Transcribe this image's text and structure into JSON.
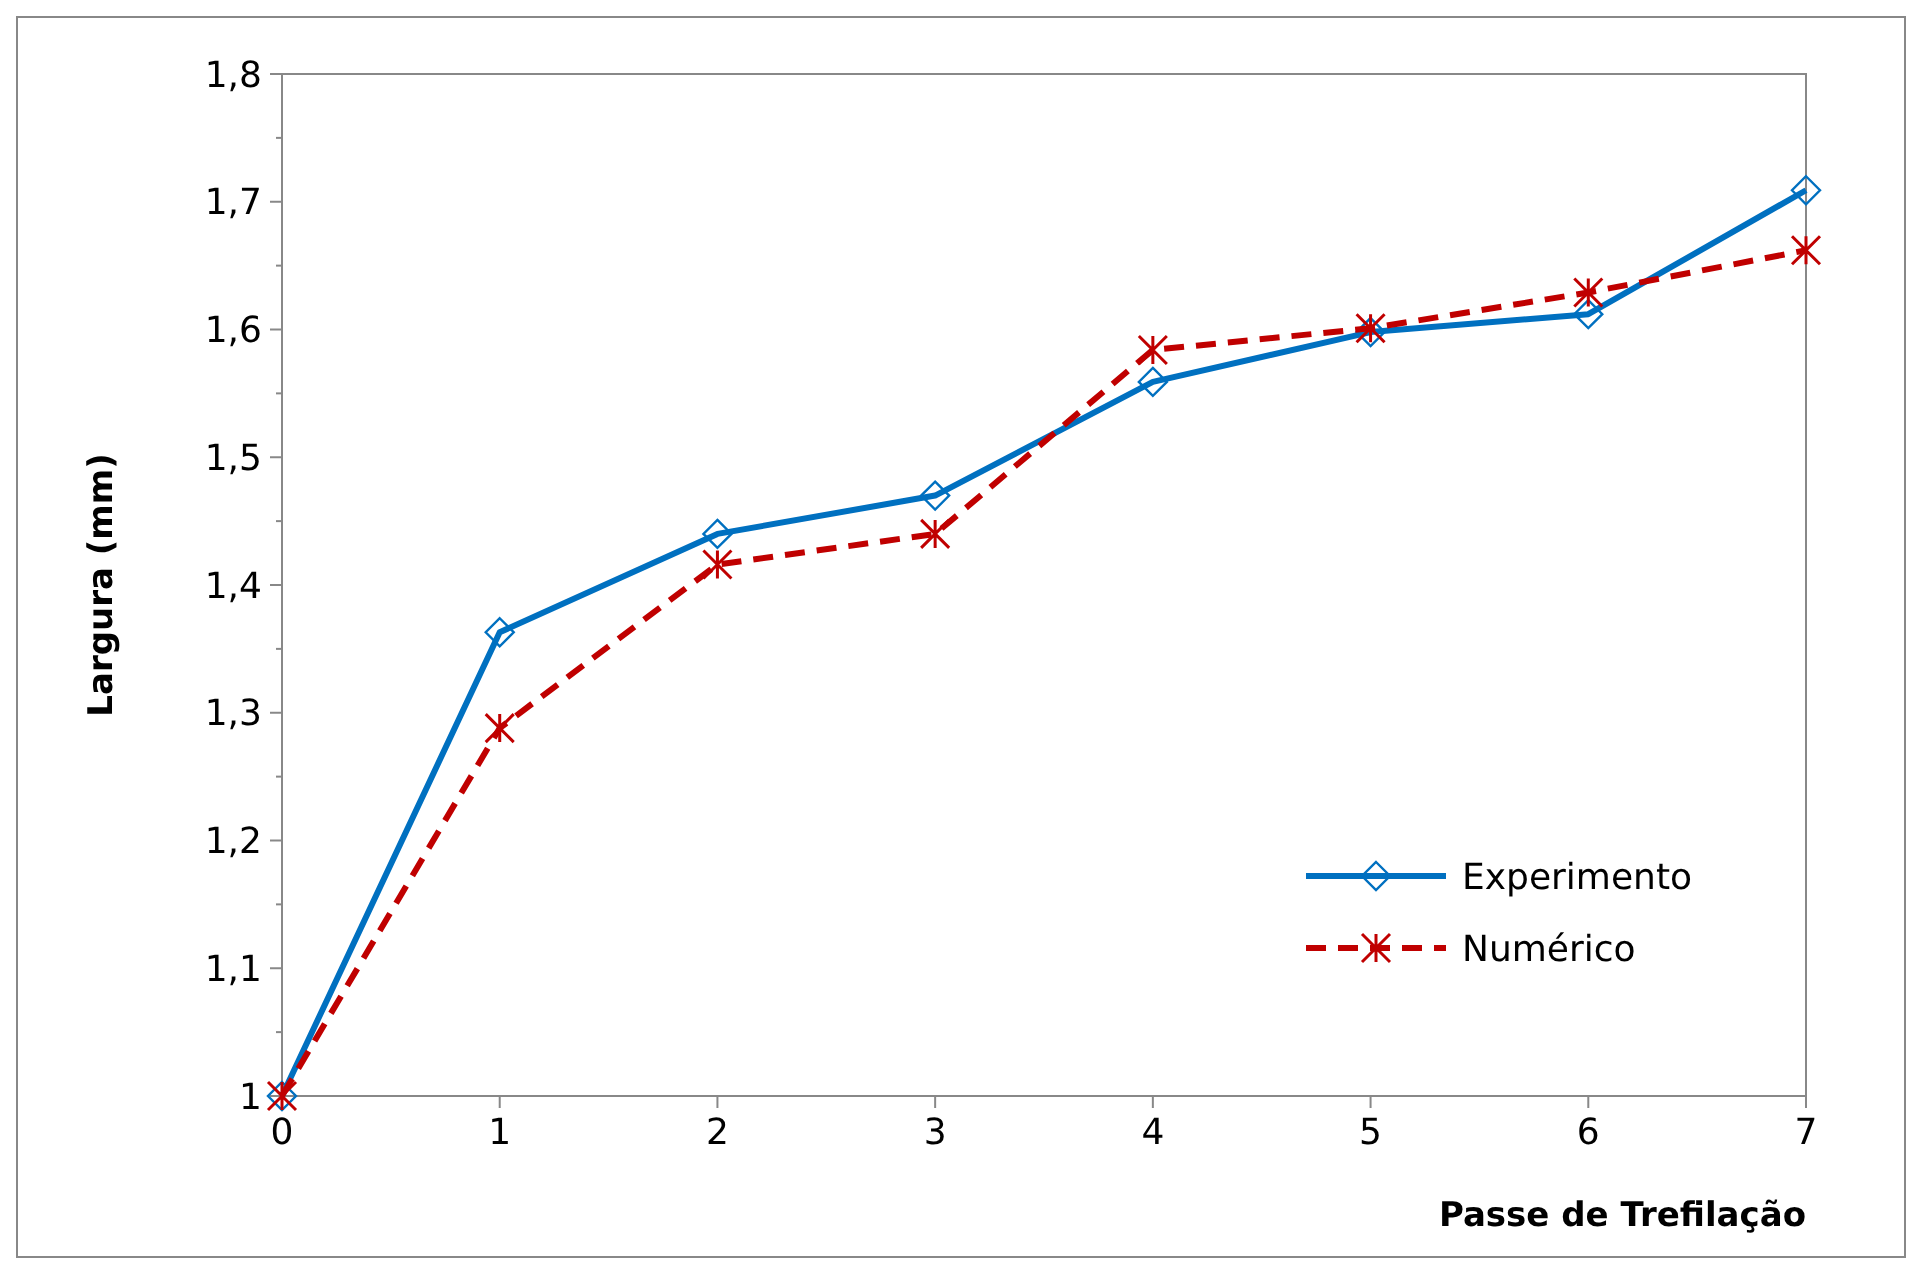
{
  "chart_data": {
    "type": "line",
    "xlabel": "Passe de Trefilação",
    "ylabel": "Largura (mm)",
    "x": [
      0,
      1,
      2,
      3,
      4,
      5,
      6,
      7
    ],
    "xlim": [
      0,
      7
    ],
    "xticks": [
      0,
      1,
      2,
      3,
      4,
      5,
      6,
      7
    ],
    "ylim": [
      1,
      1.8
    ],
    "yticks": [
      {
        "value": 1,
        "label": "1"
      },
      {
        "value": 1.1,
        "label": "1,1"
      },
      {
        "value": 1.2,
        "label": "1,2"
      },
      {
        "value": 1.3,
        "label": "1,3"
      },
      {
        "value": 1.4,
        "label": "1,4"
      },
      {
        "value": 1.5,
        "label": "1,5"
      },
      {
        "value": 1.6,
        "label": "1,6"
      },
      {
        "value": 1.7,
        "label": "1,7"
      },
      {
        "value": 1.8,
        "label": "1,8"
      }
    ],
    "grid": false,
    "legend": "bottom right",
    "series": [
      {
        "name": "Experimento",
        "color": "#0070c0",
        "marker": "diamond",
        "line_style": "solid",
        "values": [
          1.0,
          1.363,
          1.44,
          1.47,
          1.559,
          1.598,
          1.612,
          1.709
        ]
      },
      {
        "name": "Numérico",
        "color": "#c00000",
        "marker": "cross",
        "line_style": "dashed",
        "values": [
          1.0,
          1.288,
          1.416,
          1.44,
          1.584,
          1.601,
          1.629,
          1.662
        ]
      }
    ]
  }
}
